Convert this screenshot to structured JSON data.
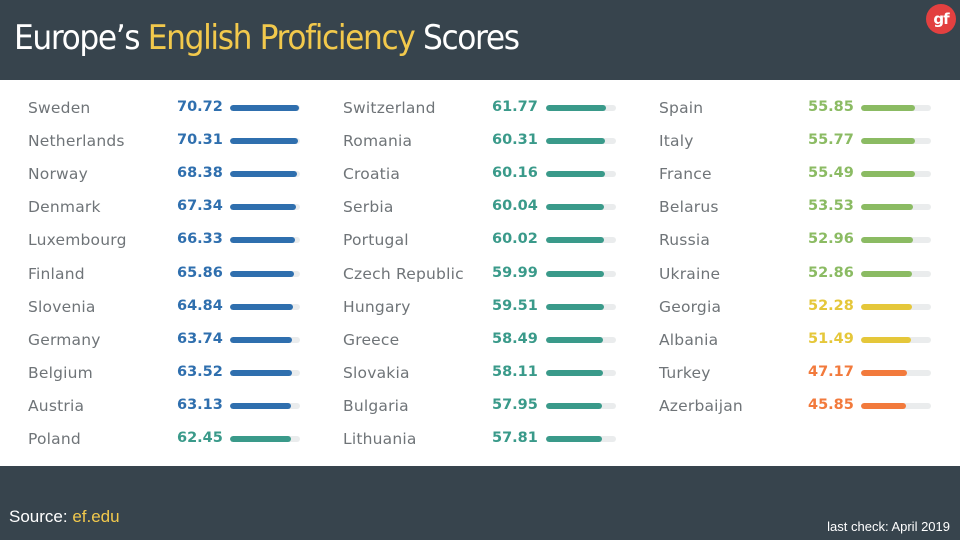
{
  "header": {
    "title_part1": "Europe’s ",
    "title_highlight": "English Proficiency",
    "title_part2": " Scores",
    "logo_text": "gf"
  },
  "footer": {
    "source_label": "Source:",
    "source_link": "ef.edu",
    "last_check": "last check: April 2019"
  },
  "colors": {
    "blue": "#2f6fae",
    "teal": "#3a9a8a",
    "green": "#8bbb63",
    "yellow": "#e5c73a",
    "orange": "#f27a3c",
    "track": "#eaeced",
    "background": "#37444d",
    "highlight": "#f2c94c"
  },
  "chart_data": {
    "type": "bar",
    "title": "Europe’s English Proficiency Scores",
    "orientation": "horizontal",
    "columns": 3,
    "xlim": [
      0,
      72
    ],
    "grid": false,
    "legend": "none",
    "entries": [
      {
        "country": "Sweden",
        "score": 70.72,
        "color": "blue"
      },
      {
        "country": "Netherlands",
        "score": 70.31,
        "color": "blue"
      },
      {
        "country": "Norway",
        "score": 68.38,
        "color": "blue"
      },
      {
        "country": "Denmark",
        "score": 67.34,
        "color": "blue"
      },
      {
        "country": "Luxembourg",
        "score": 66.33,
        "color": "blue"
      },
      {
        "country": "Finland",
        "score": 65.86,
        "color": "blue"
      },
      {
        "country": "Slovenia",
        "score": 64.84,
        "color": "blue"
      },
      {
        "country": "Germany",
        "score": 63.74,
        "color": "blue"
      },
      {
        "country": "Belgium",
        "score": 63.52,
        "color": "blue"
      },
      {
        "country": "Austria",
        "score": 63.13,
        "color": "blue"
      },
      {
        "country": "Poland",
        "score": 62.45,
        "color": "teal"
      },
      {
        "country": "Switzerland",
        "score": 61.77,
        "color": "teal"
      },
      {
        "country": "Romania",
        "score": 60.31,
        "color": "teal"
      },
      {
        "country": "Croatia",
        "score": 60.16,
        "color": "teal"
      },
      {
        "country": "Serbia",
        "score": 60.04,
        "color": "teal"
      },
      {
        "country": "Portugal",
        "score": 60.02,
        "color": "teal"
      },
      {
        "country": "Czech Republic",
        "score": 59.99,
        "color": "teal"
      },
      {
        "country": "Hungary",
        "score": 59.51,
        "color": "teal"
      },
      {
        "country": "Greece",
        "score": 58.49,
        "color": "teal"
      },
      {
        "country": "Slovakia",
        "score": 58.11,
        "color": "teal"
      },
      {
        "country": "Bulgaria",
        "score": 57.95,
        "color": "teal"
      },
      {
        "country": "Lithuania",
        "score": 57.81,
        "color": "teal"
      },
      {
        "country": "Spain",
        "score": 55.85,
        "color": "green"
      },
      {
        "country": "Italy",
        "score": 55.77,
        "color": "green"
      },
      {
        "country": "France",
        "score": 55.49,
        "color": "green"
      },
      {
        "country": "Belarus",
        "score": 53.53,
        "color": "green"
      },
      {
        "country": "Russia",
        "score": 52.96,
        "color": "green"
      },
      {
        "country": "Ukraine",
        "score": 52.86,
        "color": "green"
      },
      {
        "country": "Georgia",
        "score": 52.28,
        "color": "yellow"
      },
      {
        "country": "Albania",
        "score": 51.49,
        "color": "yellow"
      },
      {
        "country": "Turkey",
        "score": 47.17,
        "color": "orange"
      },
      {
        "country": "Azerbaijan",
        "score": 45.85,
        "color": "orange"
      }
    ]
  }
}
